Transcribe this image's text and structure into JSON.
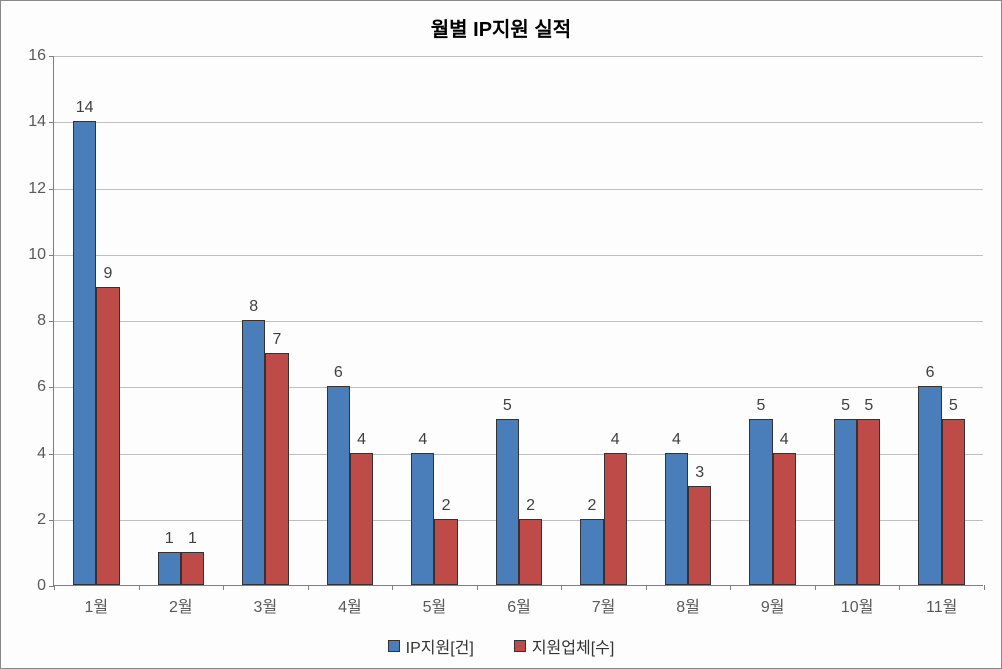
{
  "chart": {
    "type": "bar",
    "title": "월별 IP지원 실적",
    "title_fontsize": 20,
    "title_fontweight": "bold",
    "background_color": "#fdfdfd",
    "plot_border_color": "#808080",
    "grid_color": "#bfbfbf",
    "categories": [
      "1월",
      "2월",
      "3월",
      "4월",
      "5월",
      "6월",
      "7월",
      "8월",
      "9월",
      "10월",
      "11월"
    ],
    "series": [
      {
        "name": "IP지원[건]",
        "color": "#4a7ebb",
        "values": [
          14,
          1,
          8,
          6,
          4,
          5,
          2,
          4,
          5,
          5,
          6
        ]
      },
      {
        "name": "지원업체[수]",
        "color": "#be4b48",
        "values": [
          9,
          1,
          7,
          4,
          2,
          2,
          4,
          3,
          4,
          5,
          5
        ]
      }
    ],
    "ylim": [
      0,
      16
    ],
    "ytick_step": 2,
    "yticks": [
      0,
      2,
      4,
      6,
      8,
      10,
      12,
      14,
      16
    ],
    "axis_label_fontsize": 16,
    "data_label_fontsize": 16,
    "axis_label_color": "#595959",
    "data_label_color": "#404040",
    "bar_group_width": 0.55,
    "bar_border_color": "#333333"
  },
  "legend": {
    "items": [
      {
        "label": "IP지원[건]",
        "color": "#4a7ebb"
      },
      {
        "label": "지원업체[수]",
        "color": "#be4b48"
      }
    ]
  }
}
